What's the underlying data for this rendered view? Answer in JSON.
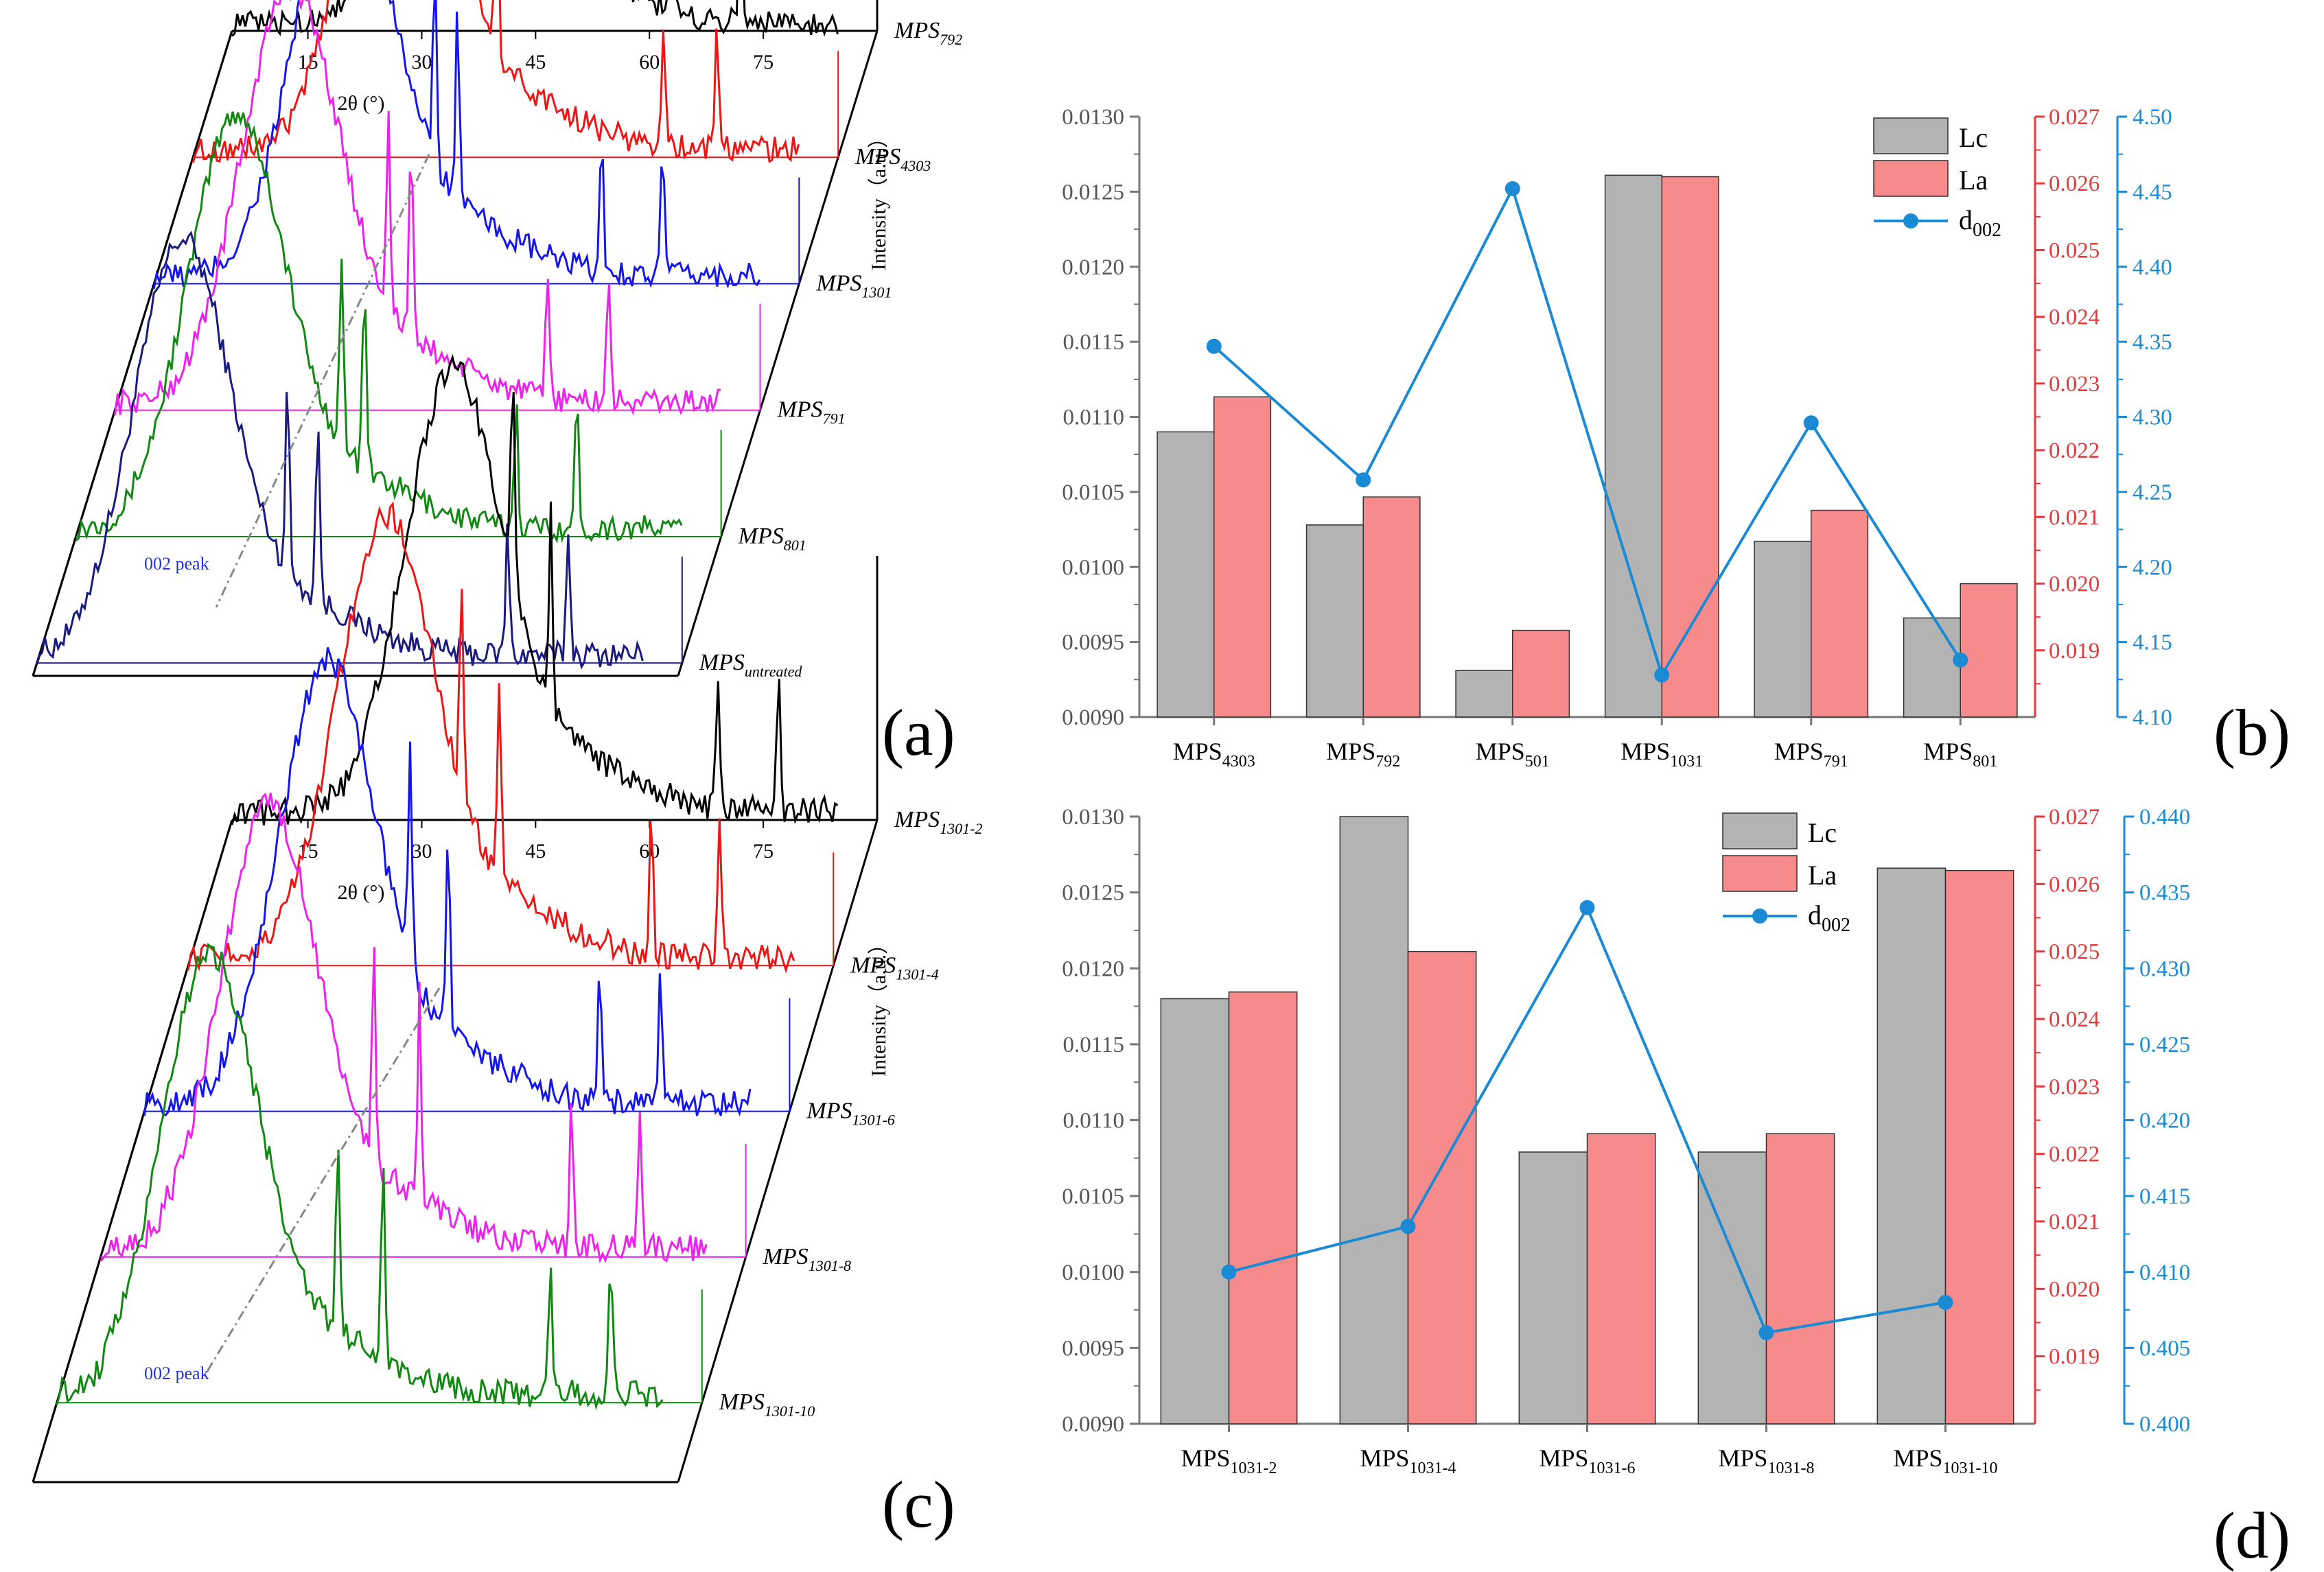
{
  "panels": {
    "a": {
      "letter": "(a)",
      "xlabel": "2θ (°)",
      "ylabel": "Intensity（a.u.）",
      "x_ticks": [
        "15",
        "30",
        "45",
        "60",
        "75"
      ],
      "peak_label": "002 peak",
      "series": [
        {
          "base": "MPS",
          "sub": "untreated",
          "color": "#1a1a80"
        },
        {
          "base": "MPS",
          "sub": "801",
          "color": "#118811"
        },
        {
          "base": "MPS",
          "sub": "791",
          "color": "#ee22ee"
        },
        {
          "base": "MPS",
          "sub": "1301",
          "color": "#1515ee"
        },
        {
          "base": "MPS",
          "sub": "4303",
          "color": "#ee1515"
        },
        {
          "base": "MPS",
          "sub": "792",
          "color": "#000000"
        }
      ]
    },
    "c": {
      "letter": "(c)",
      "xlabel": "2θ (°)",
      "ylabel": "Intensity（a.u.）",
      "x_ticks": [
        "15",
        "30",
        "45",
        "60",
        "75"
      ],
      "peak_label": "002 peak",
      "series": [
        {
          "base": "MPS",
          "sub": "1301-10",
          "color": "#118811"
        },
        {
          "base": "MPS",
          "sub": "1301-8",
          "color": "#ee22ee"
        },
        {
          "base": "MPS",
          "sub": "1301-6",
          "color": "#1515ee"
        },
        {
          "base": "MPS",
          "sub": "1301-4",
          "color": "#ee1515"
        },
        {
          "base": "MPS",
          "sub": "1301-2",
          "color": "#000000"
        }
      ]
    },
    "b": {
      "letter": "(b)"
    },
    "d": {
      "letter": "(d)"
    }
  },
  "legend": {
    "lc": "Lc",
    "la": "La",
    "d_base": "d",
    "d_sub": "002"
  },
  "colors": {
    "lc": "#b3b3b3",
    "la": "#f78a8a",
    "d002": "#1a8ad4",
    "red_axis": "#e03a3a",
    "blue_axis": "#1a8ad4"
  },
  "chart_data": [
    {
      "type": "line",
      "panel": "a",
      "title": "",
      "xlabel": "2θ (°)",
      "ylabel": "Intensity（a.u.）",
      "x_ticks": [
        15,
        30,
        45,
        60,
        75
      ],
      "series_names": [
        "MPSuntreated",
        "MPS801",
        "MPS791",
        "MPS1301",
        "MPS4303",
        "MPS792"
      ],
      "broad_peak_2theta": [
        24,
        26,
        28,
        30,
        32,
        34
      ],
      "sharp_peaks_2theta": [
        [
          38,
          42,
          67,
          75
        ],
        [
          40,
          43,
          63,
          71
        ],
        [
          41,
          44,
          62,
          70
        ],
        [
          42,
          45,
          64,
          72
        ],
        [
          41,
          45,
          67,
          74
        ],
        [
          39,
          43,
          63,
          72
        ]
      ],
      "annotation": "002 peak"
    },
    {
      "type": "bar",
      "panel": "b",
      "categories": [
        "MPS4303",
        "MPS792",
        "MPS501",
        "MPS1031",
        "MPS791",
        "MPS801"
      ],
      "series": [
        {
          "name": "Lc",
          "axis": "left",
          "values": [
            0.0109,
            0.01028,
            0.00931,
            0.01261,
            0.01017,
            0.00966
          ]
        },
        {
          "name": "La",
          "axis": "right-1",
          "values": [
            0.0228,
            0.0213,
            0.0193,
            0.0261,
            0.0211,
            0.02
          ]
        },
        {
          "name": "d002",
          "type": "line",
          "axis": "right-2",
          "values": [
            4.347,
            4.258,
            4.452,
            4.128,
            4.296,
            4.138
          ]
        }
      ],
      "ylim_left": [
        0.009,
        0.013
      ],
      "ylim_right1": [
        0.018,
        0.027
      ],
      "ylim_right2": [
        4.1,
        4.5
      ],
      "left_ticks": [
        "0.0090",
        "0.0095",
        "0.0100",
        "0.0105",
        "0.0110",
        "0.0115",
        "0.0120",
        "0.0125",
        "0.0130"
      ],
      "right1_ticks": [
        "0.019",
        "0.020",
        "0.021",
        "0.022",
        "0.023",
        "0.024",
        "0.025",
        "0.026",
        "0.027"
      ],
      "right2_ticks": [
        "4.10",
        "4.15",
        "4.20",
        "4.25",
        "4.30",
        "4.35",
        "4.40",
        "4.45",
        "4.50"
      ],
      "legend_position": "top-right"
    },
    {
      "type": "line",
      "panel": "c",
      "title": "",
      "xlabel": "2θ (°)",
      "ylabel": "Intensity（a.u.）",
      "x_ticks": [
        15,
        30,
        45,
        60,
        75
      ],
      "series_names": [
        "MPS1301-10",
        "MPS1301-8",
        "MPS1301-6",
        "MPS1301-4",
        "MPS1301-2"
      ],
      "broad_peak_2theta": [
        25,
        27,
        29,
        31,
        34
      ],
      "sharp_peaks_2theta": [
        [
          42,
          48,
          70,
          78
        ],
        [
          41,
          47,
          67,
          76
        ],
        [
          40,
          45,
          65,
          73
        ],
        [
          41,
          46,
          66,
          75
        ],
        [
          42,
          47,
          69,
          77
        ]
      ],
      "annotation": "002 peak"
    },
    {
      "type": "bar",
      "panel": "d",
      "categories": [
        "MPS1031-2",
        "MPS1031-4",
        "MPS1031-6",
        "MPS1031-8",
        "MPS1031-10"
      ],
      "series": [
        {
          "name": "Lc",
          "axis": "left",
          "values": [
            0.0118,
            0.013,
            0.01079,
            0.01079,
            0.01266
          ]
        },
        {
          "name": "La",
          "axis": "right-1",
          "values": [
            0.0244,
            0.025,
            0.0223,
            0.0223,
            0.0262
          ]
        },
        {
          "name": "d002",
          "type": "line",
          "axis": "right-2",
          "values": [
            0.41,
            0.413,
            0.434,
            0.406,
            0.408
          ]
        }
      ],
      "ylim_left": [
        0.009,
        0.013
      ],
      "ylim_right1": [
        0.018,
        0.027
      ],
      "ylim_right2": [
        0.4,
        0.44
      ],
      "left_ticks": [
        "0.0090",
        "0.0095",
        "0.0100",
        "0.0105",
        "0.0110",
        "0.0115",
        "0.0120",
        "0.0125",
        "0.0130"
      ],
      "right1_ticks": [
        "0.019",
        "0.020",
        "0.021",
        "0.022",
        "0.023",
        "0.024",
        "0.025",
        "0.026",
        "0.027"
      ],
      "right2_ticks": [
        "0.400",
        "0.405",
        "0.410",
        "0.415",
        "0.420",
        "0.425",
        "0.430",
        "0.435",
        "0.440"
      ],
      "legend_position": "top-right"
    }
  ]
}
